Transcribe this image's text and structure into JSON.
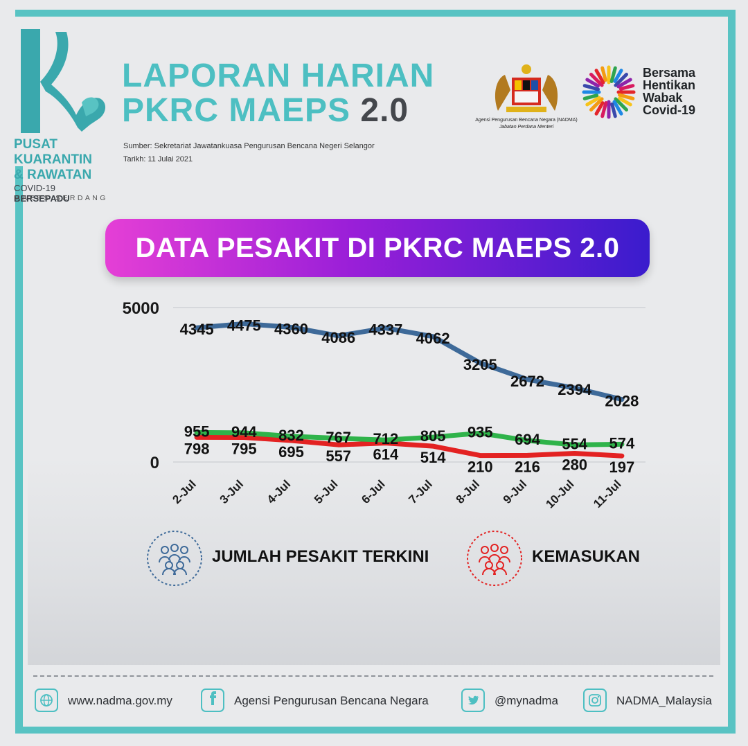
{
  "logo": {
    "line1": "PUSAT",
    "line2": "KUARANTIN",
    "line3": "& RAWATAN",
    "line4a": "COVID-19",
    "line4b": "BERSEPADU",
    "line5": "MAEPS SERDANG"
  },
  "header": {
    "title_line1": "LAPORAN HARIAN",
    "title_line2": "PKRC MAEPS",
    "title_version": "2.0",
    "source": "Sumber: Sekretariat Jawatankuasa Pengurusan Bencana Negeri Selangor",
    "date": "Tarikh: 11 Julai 2021"
  },
  "partners": {
    "crest_caption1": "Agensi Pengurusan Bencana Negara (NADMA)",
    "crest_caption2": "Jabatan Perdana Menteri",
    "slogan": [
      "Bersama",
      "Hentikan",
      "Wabak",
      "Covid-19"
    ]
  },
  "banner": {
    "text": "DATA PESAKIT DI PKRC MAEPS 2.0"
  },
  "chart_data": {
    "type": "line",
    "title": "DATA PESAKIT DI PKRC MAEPS 2.0",
    "categories": [
      "2-Jul",
      "3-Jul",
      "4-Jul",
      "5-Jul",
      "6-Jul",
      "7-Jul",
      "8-Jul",
      "9-Jul",
      "10-Jul",
      "11-Jul"
    ],
    "ylim": [
      0,
      5000
    ],
    "yticks": [
      0,
      5000
    ],
    "grid": true,
    "series": [
      {
        "name": "JUMLAH PESAKIT TERKINI",
        "color": "#3e6a99",
        "values": [
          4345,
          4475,
          4360,
          4086,
          4337,
          4062,
          3205,
          2672,
          2394,
          2028
        ]
      },
      {
        "name": "KEMASUKAN",
        "color": "#e32222",
        "values": [
          798,
          795,
          695,
          557,
          614,
          514,
          210,
          216,
          280,
          197
        ]
      },
      {
        "color": "#2fb34a",
        "values": [
          955,
          944,
          832,
          767,
          712,
          805,
          935,
          694,
          554,
          574
        ]
      }
    ]
  },
  "legend": {
    "item1": "JUMLAH PESAKIT TERKINI",
    "item2": "KEMASUKAN"
  },
  "footer": {
    "website": "www.nadma.gov.my",
    "facebook": "Agensi Pengurusan Bencana Negara",
    "twitter": "@mynadma",
    "instagram": "NADMA_Malaysia"
  }
}
